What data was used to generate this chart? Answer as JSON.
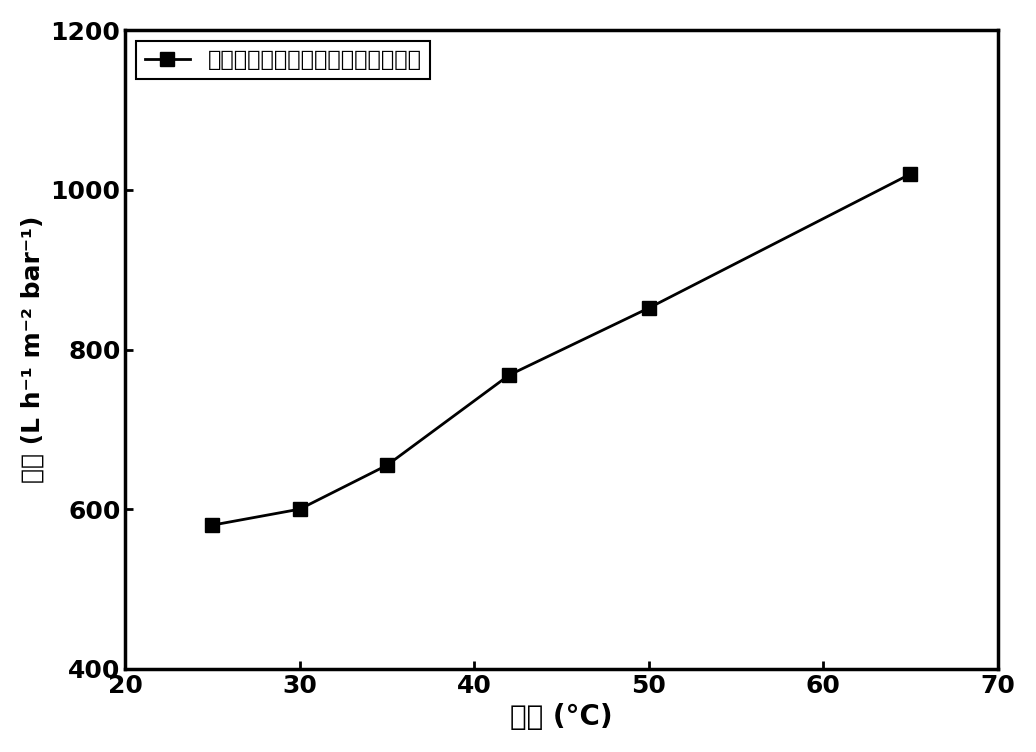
{
  "x": [
    25,
    30,
    35,
    42,
    50,
    65
  ],
  "y": [
    580,
    600,
    655,
    768,
    852,
    1020
  ],
  "xlim": [
    20,
    70
  ],
  "ylim": [
    400,
    1200
  ],
  "xticks": [
    20,
    30,
    40,
    50,
    60,
    70
  ],
  "yticks": [
    400,
    600,
    800,
    1000,
    1200
  ],
  "xlabel": "温度 (°C)",
  "ylabel": "通量 (L h⁻¹ m⁻² bar⁻¹)",
  "legend_label": "二维温敏金属有机框架纳米片基滤膜",
  "line_color": "#000000",
  "marker": "s",
  "marker_size": 10,
  "marker_facecolor": "#000000",
  "linewidth": 2.0,
  "xlabel_fontsize": 20,
  "ylabel_fontsize": 18,
  "tick_fontsize": 18,
  "legend_fontsize": 16,
  "background_color": "#ffffff"
}
